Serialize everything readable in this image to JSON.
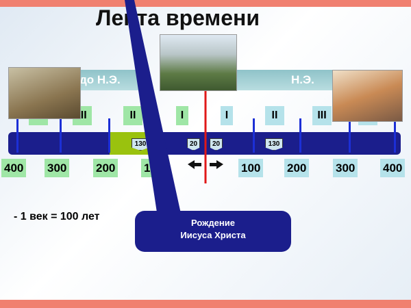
{
  "title": "Лента времени",
  "eras": {
    "bc": "до Н.Э.",
    "ad": "Н.Э."
  },
  "centuries": [
    "IV",
    "III",
    "II",
    "I",
    "I",
    "II",
    "III",
    "IV"
  ],
  "badges": [
    "130",
    "20",
    "20",
    "130"
  ],
  "years": [
    "400",
    "300",
    "200",
    "100",
    "100",
    "200",
    "300",
    "400"
  ],
  "note": "- 1 век = 100 лет",
  "callout": {
    "line1": "Рождение",
    "line2": "Иисуса Христа"
  },
  "colors": {
    "bar": "#1b1e8c",
    "bc_label": "#9fe6a6",
    "ad_label": "#b5e2ea",
    "marker": "#e01818",
    "highlight": "#9ac20e"
  }
}
